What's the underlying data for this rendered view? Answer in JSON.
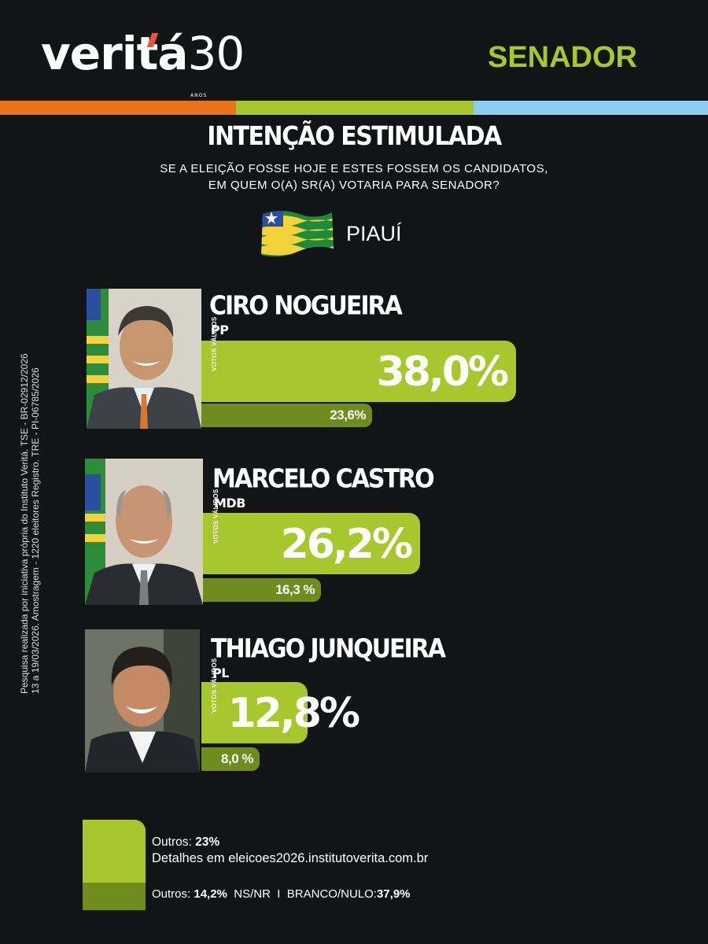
{
  "brand": {
    "logo_main": "veritá",
    "logo_thirty": "30",
    "logo_anos": "ANOS"
  },
  "header": {
    "office": "SENADOR"
  },
  "colors": {
    "accent": "#a6c72d",
    "accent_dark": "#6f8c1f",
    "stripe_orange": "#e9731c",
    "stripe_green": "#a6c72d",
    "stripe_blue": "#8ecdf0",
    "background": "#121416"
  },
  "title": "INTENÇÃO ESTIMULADA",
  "question": [
    "SE A ELEIÇÃO FOSSE HOJE E ESTES FOSSEM OS CANDIDATOS,",
    "EM QUEM O(A) SR(A) VOTARIA PARA SENADOR?"
  ],
  "region": {
    "name": "PIAUÍ",
    "flag_icon": "piaui-flag-icon"
  },
  "valid_votes_label": "VOTOS VÁLIDOS",
  "chart_data": {
    "type": "bar",
    "categories": [
      "CIRO NOGUEIRA",
      "MARCELO CASTRO",
      "THIAGO JUNQUEIRA"
    ],
    "parties": [
      "PP",
      "MDB",
      "PL"
    ],
    "series": [
      {
        "name": "VOTOS VÁLIDOS",
        "values": [
          38.0,
          26.2,
          12.8
        ],
        "labels": [
          "38,0%",
          "26,2%",
          "12,8%"
        ]
      },
      {
        "values": [
          23.6,
          16.3,
          8.0
        ],
        "labels": [
          "23,6%",
          "16,3 %",
          "8,0 %"
        ]
      }
    ]
  },
  "side_note": [
    "Pesquisa realizada por iniciativa própria do Instituto Veritá. TSE - BR-02912/2026",
    "13 a 19/03/2026. Amostragem - 1220 eleitores Registro. TRE - PI-06785/2026"
  ],
  "footer": {
    "outros_label": "Outros:",
    "outros_value": "23%",
    "details": "Detalhes em eleicoes2026.institutoverita.com.br",
    "outros2_label": "Outros:",
    "outros2_value": "14,2%",
    "nsnr_label": "NS/NR",
    "separator": "I",
    "branco_label": "BRANCO/NULO:",
    "branco_value": "37,9%"
  }
}
